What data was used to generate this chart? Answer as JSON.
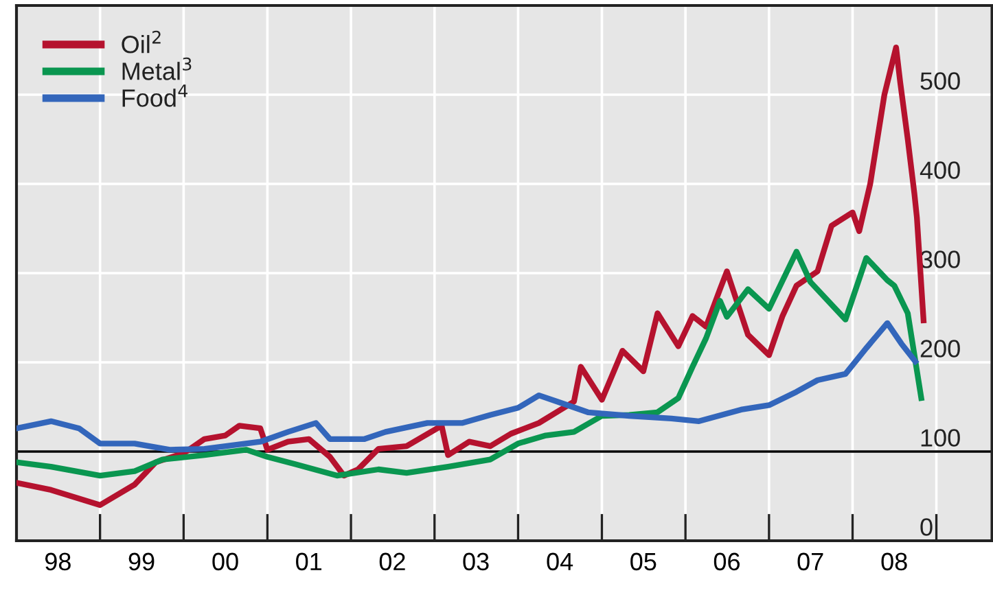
{
  "chart_data": {
    "type": "line",
    "series": [
      {
        "name": "Oil$^{2}$",
        "color": "#b5122e",
        "x": [
          "1998-01",
          "1998-06",
          "1999-01",
          "1999-06",
          "1999-09",
          "2000-01",
          "2000-04",
          "2000-07",
          "2000-09",
          "2000-12",
          "2001-01",
          "2001-04",
          "2001-07",
          "2001-10",
          "2001-12",
          "2002-02",
          "2002-05",
          "2002-09",
          "2003-02",
          "2003-03",
          "2003-06",
          "2003-09",
          "2003-12",
          "2004-04",
          "2004-09",
          "2004-10",
          "2005-01",
          "2005-04",
          "2005-07",
          "2005-09",
          "2005-12",
          "2006-02",
          "2006-04",
          "2006-06",
          "2006-07",
          "2006-10",
          "2007-01",
          "2007-03",
          "2007-05",
          "2007-08",
          "2007-10",
          "2008-01-01",
          "2008-01-30",
          "2008-03-18",
          "2008-05-19",
          "2008-07-09",
          "2008-07-27",
          "2008-08-29",
          "2008-09-27",
          "2008-10-08",
          "2008-11-06"
        ],
        "values": [
          65,
          57,
          40,
          63,
          88,
          98,
          114,
          118,
          129,
          126,
          102,
          111,
          114,
          94,
          73,
          80,
          103,
          106,
          129,
          96,
          111,
          106,
          120,
          132,
          156,
          195,
          158,
          213,
          190,
          255,
          218,
          252,
          240,
          282,
          302,
          231,
          208,
          252,
          286,
          302,
          353,
          368,
          347,
          400,
          500,
          553,
          514,
          450,
          389,
          362,
          247
        ]
      },
      {
        "name": "Metal$^{3}$",
        "color": "#0a9650",
        "x": [
          "1998-01",
          "1998-06",
          "1999-01",
          "1999-06",
          "1999-10",
          "2000-04",
          "2000-10",
          "2001-01",
          "2001-05",
          "2001-11",
          "2002-05",
          "2002-09",
          "2003-03",
          "2003-09",
          "2004-01",
          "2004-05",
          "2004-09",
          "2005-01",
          "2005-05",
          "2005-09",
          "2005-12",
          "2006-02",
          "2006-04",
          "2006-06",
          "2006-07",
          "2006-10",
          "2007-01",
          "2007-05",
          "2007-07",
          "2007-12",
          "2008-03",
          "2008-06",
          "2008-07",
          "2008-08-29",
          "2008-10-27"
        ],
        "values": [
          88,
          83,
          73,
          78,
          91,
          96,
          102,
          94,
          86,
          73,
          80,
          76,
          83,
          91,
          109,
          118,
          122,
          140,
          141,
          144,
          160,
          195,
          227,
          269,
          251,
          282,
          260,
          324,
          290,
          248,
          317,
          292,
          286,
          255,
          160
        ]
      },
      {
        "name": "Food$^{4}$",
        "color": "#3366bb",
        "x": [
          "1998-01",
          "1998-06",
          "1998-10",
          "1999-01",
          "1999-06",
          "1999-11",
          "2000-04",
          "2000-12",
          "2001-04",
          "2001-08",
          "2001-10",
          "2002-03",
          "2002-06",
          "2002-12",
          "2003-05",
          "2003-09",
          "2004-01",
          "2004-04",
          "2004-07",
          "2004-11",
          "2005-05",
          "2005-11",
          "2006-03",
          "2006-09",
          "2007-01",
          "2007-05",
          "2007-08",
          "2007-12",
          "2008-03",
          "2008-06",
          "2008-08",
          "2008-10"
        ],
        "values": [
          126,
          134,
          126,
          109,
          109,
          102,
          103,
          111,
          122,
          132,
          114,
          114,
          122,
          132,
          132,
          141,
          149,
          163,
          155,
          144,
          140,
          137,
          134,
          147,
          152,
          167,
          180,
          187,
          216,
          244,
          221,
          201
        ]
      }
    ],
    "xlim": [
      "1998-01-01",
      "2009-09-01"
    ],
    "xticks": [
      {
        "value": "1999-01-01",
        "label": null
      },
      {
        "value": "2000-01-01",
        "label": null
      },
      {
        "value": "2001-01-01",
        "label": null
      },
      {
        "value": "2002-01-01",
        "label": null
      },
      {
        "value": "2003-01-01",
        "label": null
      },
      {
        "value": "2004-01-01",
        "label": null
      },
      {
        "value": "2005-01-01",
        "label": null
      },
      {
        "value": "2006-01-01",
        "label": null
      },
      {
        "value": "2007-01-01",
        "label": null
      },
      {
        "value": "2008-01-01",
        "label": null
      },
      {
        "value": "2009-01-01",
        "label": null
      },
      {
        "value": "1998-07-01",
        "label": "98"
      },
      {
        "value": "1999-07-01",
        "label": "99"
      },
      {
        "value": "2000-07-01",
        "label": "00"
      },
      {
        "value": "2001-07-01",
        "label": "01"
      },
      {
        "value": "2002-07-01",
        "label": "02"
      },
      {
        "value": "2003-07-01",
        "label": "03"
      },
      {
        "value": "2004-07-01",
        "label": "04"
      },
      {
        "value": "2005-07-01",
        "label": "05"
      },
      {
        "value": "2006-07-01",
        "label": "06"
      },
      {
        "value": "2007-07-01",
        "label": "07"
      },
      {
        "value": "2008-07-01",
        "label": "08"
      }
    ],
    "ylim": [
      0,
      600
    ],
    "yticks": [
      0,
      100,
      200,
      300,
      400,
      500
    ],
    "ref_lines": [
      {
        "axis": "y",
        "value": 100,
        "color": "#000000"
      }
    ],
    "grid": true,
    "legend": "top left",
    "line_style": "solid",
    "marker": "none"
  }
}
